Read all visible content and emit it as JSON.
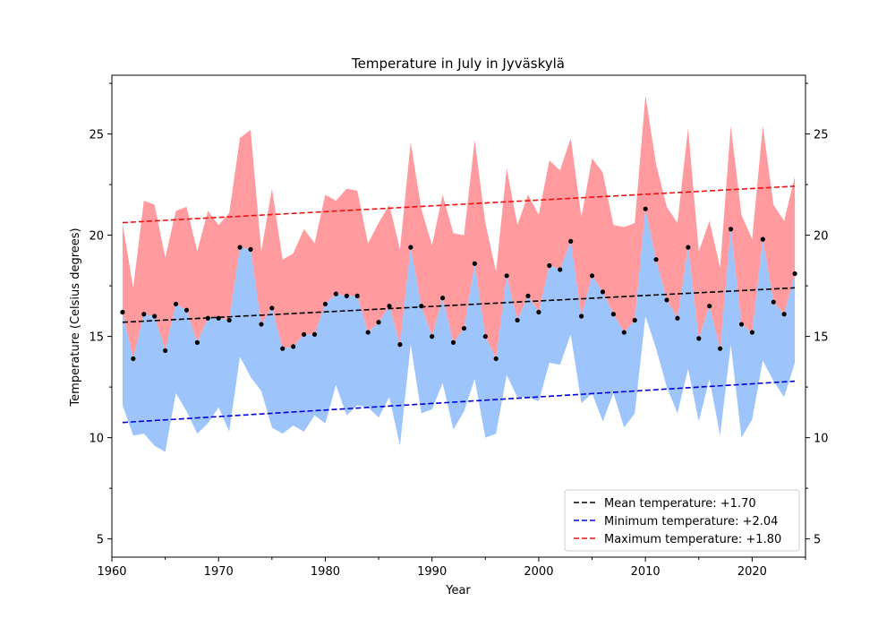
{
  "chart_data": {
    "type": "area",
    "title": "Temperature in July in Jyväskylä",
    "xlabel": "Year",
    "ylabel": "Temperature (Celsius degrees)",
    "xlim": [
      1960,
      2025
    ],
    "ylim": [
      4.1,
      27.9
    ],
    "xticks": [
      1960,
      1970,
      1980,
      1990,
      2000,
      2010,
      2020
    ],
    "yticks": [
      5,
      10,
      15,
      20,
      25
    ],
    "grid": false,
    "legend_position": "lower-right",
    "colors": {
      "max_fill": "#ff9a9e",
      "min_fill": "#9ec5fb",
      "mean_points": "#000000",
      "mean_trend": "#000000",
      "min_trend": "#0000dd",
      "max_trend": "#ee1111"
    },
    "years": [
      1961,
      1962,
      1963,
      1964,
      1965,
      1966,
      1967,
      1968,
      1969,
      1970,
      1971,
      1972,
      1973,
      1974,
      1975,
      1976,
      1977,
      1978,
      1979,
      1980,
      1981,
      1982,
      1983,
      1984,
      1985,
      1986,
      1987,
      1988,
      1989,
      1990,
      1991,
      1992,
      1993,
      1994,
      1995,
      1996,
      1997,
      1998,
      1999,
      2000,
      2001,
      2002,
      2003,
      2004,
      2005,
      2006,
      2007,
      2008,
      2009,
      2010,
      2011,
      2012,
      2013,
      2014,
      2015,
      2016,
      2017,
      2018,
      2019,
      2020,
      2021,
      2022,
      2023,
      2024
    ],
    "mean": [
      16.2,
      13.9,
      16.1,
      16.0,
      14.3,
      16.6,
      16.3,
      14.7,
      15.9,
      15.9,
      15.8,
      19.4,
      19.3,
      15.6,
      16.4,
      14.4,
      14.5,
      15.1,
      15.1,
      16.6,
      17.1,
      17.0,
      17.0,
      15.2,
      15.7,
      16.5,
      14.6,
      19.4,
      16.5,
      15.0,
      16.9,
      14.7,
      15.4,
      18.6,
      15.0,
      13.9,
      18.0,
      15.8,
      17.0,
      16.2,
      18.5,
      18.3,
      19.7,
      16.0,
      18.0,
      17.2,
      16.1,
      15.2,
      15.8,
      21.3,
      18.8,
      16.8,
      15.9,
      19.4,
      14.9,
      16.5,
      14.4,
      20.3,
      15.6,
      15.2,
      19.8,
      16.7,
      16.1,
      18.1
    ],
    "min": [
      11.6,
      10.1,
      10.2,
      9.6,
      9.3,
      12.2,
      11.3,
      10.2,
      10.7,
      11.5,
      10.3,
      14.0,
      13.0,
      12.3,
      10.5,
      10.2,
      10.6,
      10.3,
      11.1,
      10.7,
      12.6,
      11.1,
      11.6,
      11.5,
      11.0,
      12.0,
      9.6,
      14.6,
      11.2,
      11.4,
      12.7,
      10.4,
      11.3,
      12.9,
      10.0,
      10.2,
      13.1,
      12.0,
      12.0,
      11.8,
      13.7,
      13.6,
      15.1,
      11.7,
      12.2,
      10.8,
      12.2,
      10.5,
      11.2,
      16.0,
      14.4,
      12.5,
      11.2,
      13.4,
      10.8,
      12.9,
      10.1,
      14.6,
      10.0,
      10.9,
      13.8,
      12.8,
      12.0,
      13.7
    ],
    "max": [
      20.6,
      17.4,
      21.7,
      21.5,
      18.9,
      21.2,
      21.4,
      19.2,
      21.2,
      20.5,
      21.1,
      24.8,
      25.2,
      19.2,
      22.3,
      18.8,
      19.1,
      20.3,
      19.6,
      22.0,
      21.7,
      22.3,
      22.2,
      19.6,
      20.6,
      21.5,
      19.3,
      24.6,
      21.3,
      19.5,
      22.0,
      20.1,
      20.0,
      24.7,
      20.6,
      18.2,
      23.3,
      20.5,
      22.0,
      21.0,
      23.7,
      23.2,
      24.8,
      20.9,
      23.8,
      23.1,
      20.5,
      20.4,
      20.6,
      26.9,
      23.5,
      21.4,
      20.6,
      25.3,
      19.2,
      20.7,
      18.4,
      25.4,
      21.0,
      19.8,
      25.4,
      21.5,
      20.7,
      22.9
    ],
    "trends": [
      {
        "name": "Mean temperature: +1.70",
        "start": [
          1961,
          15.7
        ],
        "end": [
          2024,
          17.4
        ],
        "style": "dashed"
      },
      {
        "name": "Minimum temperature: +2.04",
        "start": [
          1961,
          10.75
        ],
        "end": [
          2024,
          12.79
        ],
        "style": "dashed"
      },
      {
        "name": "Maximum temperature: +1.80",
        "start": [
          1961,
          20.62
        ],
        "end": [
          2024,
          22.42
        ],
        "style": "dashed"
      }
    ]
  }
}
